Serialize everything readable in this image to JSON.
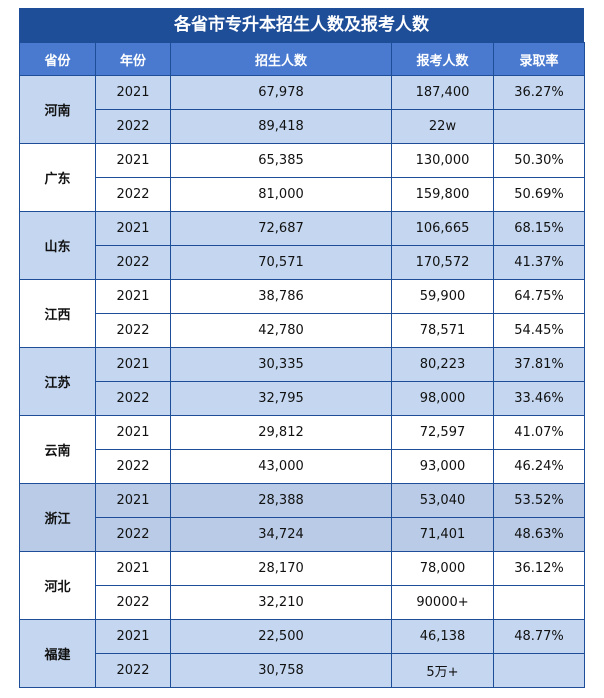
{
  "title": "各省市专升本招生人数及报考人数",
  "headers": [
    "省份",
    "年份",
    "招生人数",
    "报考人数",
    "录取率"
  ],
  "provinces": [
    {
      "name": "河南",
      "rows": [
        [
          "2021",
          "67,978",
          "187,400",
          "36.27%"
        ],
        [
          "2022",
          "89,418",
          "22w",
          ""
        ]
      ]
    },
    {
      "name": "广东",
      "rows": [
        [
          "2021",
          "65,385",
          "130,000",
          "50.30%"
        ],
        [
          "2022",
          "81,000",
          "159,800",
          "50.69%"
        ]
      ]
    },
    {
      "name": "山东",
      "rows": [
        [
          "2021",
          "72,687",
          "106,665",
          "68.15%"
        ],
        [
          "2022",
          "70,571",
          "170,572",
          "41.37%"
        ]
      ]
    },
    {
      "name": "江西",
      "rows": [
        [
          "2021",
          "38,786",
          "59,900",
          "64.75%"
        ],
        [
          "2022",
          "42,780",
          "78,571",
          "54.45%"
        ]
      ]
    },
    {
      "name": "江苏",
      "rows": [
        [
          "2021",
          "30,335",
          "80,223",
          "37.81%"
        ],
        [
          "2022",
          "32,795",
          "98,000",
          "33.46%"
        ]
      ]
    },
    {
      "name": "云南",
      "rows": [
        [
          "2021",
          "29,812",
          "72,597",
          "41.07%"
        ],
        [
          "2022",
          "43,000",
          "93,000",
          "46.24%"
        ]
      ]
    },
    {
      "name": "浙江",
      "rows": [
        [
          "2021",
          "28,388",
          "53,040",
          "53.52%"
        ],
        [
          "2022",
          "34,724",
          "71,401",
          "48.63%"
        ]
      ]
    },
    {
      "name": "河北",
      "rows": [
        [
          "2021",
          "28,170",
          "78,000",
          "36.12%"
        ],
        [
          "2022",
          "32,210",
          "90000+",
          ""
        ]
      ]
    },
    {
      "name": "福建",
      "rows": [
        [
          "2021",
          "22,500",
          "46,138",
          "48.77%"
        ],
        [
          "2022",
          "30,758",
          "5万+",
          ""
        ]
      ]
    }
  ],
  "colors": {
    "title_bg": "#1f4e99",
    "header_bg": "#4a7ad0",
    "shade": "#c5d7f0",
    "border": "#1f4e99"
  }
}
